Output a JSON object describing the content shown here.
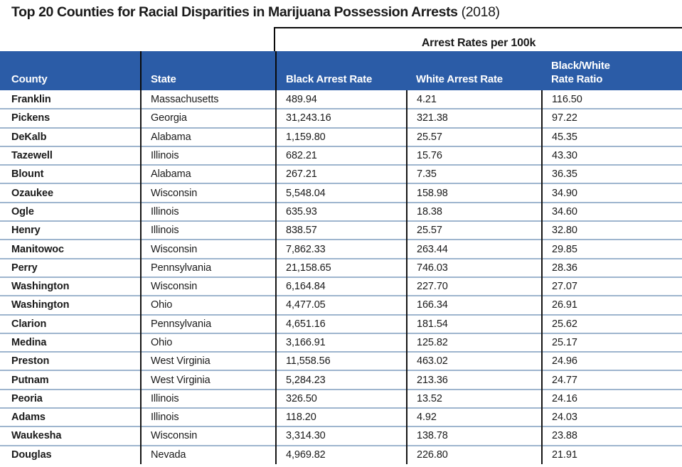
{
  "title": {
    "main": "Top 20 Counties for Racial Disparities in Marijuana Possession Arrests",
    "year": " (2018)"
  },
  "table": {
    "span_header": "Arrest Rates per 100k",
    "columns": [
      {
        "label": "County"
      },
      {
        "label": "State"
      },
      {
        "label": "Black Arrest Rate"
      },
      {
        "label": "White Arrest Rate"
      },
      {
        "label": "Black/White Rate Ratio"
      }
    ],
    "rows": [
      {
        "county": "Franklin",
        "state": "Massachusetts",
        "black_rate": "489.94",
        "white_rate": "4.21",
        "ratio": "116.50"
      },
      {
        "county": "Pickens",
        "state": "Georgia",
        "black_rate": "31,243.16",
        "white_rate": "321.38",
        "ratio": "97.22"
      },
      {
        "county": "DeKalb",
        "state": "Alabama",
        "black_rate": "1,159.80",
        "white_rate": "25.57",
        "ratio": "45.35"
      },
      {
        "county": "Tazewell",
        "state": "Illinois",
        "black_rate": "682.21",
        "white_rate": "15.76",
        "ratio": "43.30"
      },
      {
        "county": "Blount",
        "state": "Alabama",
        "black_rate": "267.21",
        "white_rate": "7.35",
        "ratio": "36.35"
      },
      {
        "county": "Ozaukee",
        "state": "Wisconsin",
        "black_rate": "5,548.04",
        "white_rate": "158.98",
        "ratio": "34.90"
      },
      {
        "county": "Ogle",
        "state": "Illinois",
        "black_rate": "635.93",
        "white_rate": "18.38",
        "ratio": "34.60"
      },
      {
        "county": "Henry",
        "state": "Illinois",
        "black_rate": "838.57",
        "white_rate": "25.57",
        "ratio": "32.80"
      },
      {
        "county": "Manitowoc",
        "state": "Wisconsin",
        "black_rate": "7,862.33",
        "white_rate": "263.44",
        "ratio": "29.85"
      },
      {
        "county": "Perry",
        "state": "Pennsylvania",
        "black_rate": "21,158.65",
        "white_rate": "746.03",
        "ratio": "28.36"
      },
      {
        "county": "Washington",
        "state": "Wisconsin",
        "black_rate": "6,164.84",
        "white_rate": "227.70",
        "ratio": "27.07"
      },
      {
        "county": "Washington",
        "state": "Ohio",
        "black_rate": "4,477.05",
        "white_rate": "166.34",
        "ratio": "26.91"
      },
      {
        "county": "Clarion",
        "state": "Pennsylvania",
        "black_rate": "4,651.16",
        "white_rate": "181.54",
        "ratio": "25.62"
      },
      {
        "county": "Medina",
        "state": "Ohio",
        "black_rate": "3,166.91",
        "white_rate": "125.82",
        "ratio": "25.17"
      },
      {
        "county": "Preston",
        "state": "West Virginia",
        "black_rate": "11,558.56",
        "white_rate": "463.02",
        "ratio": "24.96"
      },
      {
        "county": "Putnam",
        "state": "West Virginia",
        "black_rate": "5,284.23",
        "white_rate": "213.36",
        "ratio": "24.77"
      },
      {
        "county": "Peoria",
        "state": "Illinois",
        "black_rate": "326.50",
        "white_rate": "13.52",
        "ratio": "24.16"
      },
      {
        "county": "Adams",
        "state": "Illinois",
        "black_rate": "118.20",
        "white_rate": "4.92",
        "ratio": "24.03"
      },
      {
        "county": "Waukesha",
        "state": "Wisconsin",
        "black_rate": "3,314.30",
        "white_rate": "138.78",
        "ratio": "23.88"
      },
      {
        "county": "Douglas",
        "state": "Nevada",
        "black_rate": "4,969.82",
        "white_rate": "226.80",
        "ratio": "21.91"
      }
    ]
  },
  "colors": {
    "header_bg": "#2B5CA7",
    "header_text": "#FFFFFF",
    "row_divider": "#9EB5CE",
    "border_black": "#0A0A0A",
    "text": "#1A1A1A"
  },
  "chart_data": {
    "type": "table",
    "title": "Top 20 Counties for Racial Disparities in Marijuana Possession Arrests (2018)",
    "group_header": {
      "label": "Arrest Rates per 100k",
      "spans_columns": [
        "Black Arrest Rate",
        "White Arrest Rate",
        "Black/White Rate Ratio"
      ]
    },
    "columns": [
      "County",
      "State",
      "Black Arrest Rate",
      "White Arrest Rate",
      "Black/White Rate Ratio"
    ],
    "rows": [
      [
        "Franklin",
        "Massachusetts",
        489.94,
        4.21,
        116.5
      ],
      [
        "Pickens",
        "Georgia",
        31243.16,
        321.38,
        97.22
      ],
      [
        "DeKalb",
        "Alabama",
        1159.8,
        25.57,
        45.35
      ],
      [
        "Tazewell",
        "Illinois",
        682.21,
        15.76,
        43.3
      ],
      [
        "Blount",
        "Alabama",
        267.21,
        7.35,
        36.35
      ],
      [
        "Ozaukee",
        "Wisconsin",
        5548.04,
        158.98,
        34.9
      ],
      [
        "Ogle",
        "Illinois",
        635.93,
        18.38,
        34.6
      ],
      [
        "Henry",
        "Illinois",
        838.57,
        25.57,
        32.8
      ],
      [
        "Manitowoc",
        "Wisconsin",
        7862.33,
        263.44,
        29.85
      ],
      [
        "Perry",
        "Pennsylvania",
        21158.65,
        746.03,
        28.36
      ],
      [
        "Washington",
        "Wisconsin",
        6164.84,
        227.7,
        27.07
      ],
      [
        "Washington",
        "Ohio",
        4477.05,
        166.34,
        26.91
      ],
      [
        "Clarion",
        "Pennsylvania",
        4651.16,
        181.54,
        25.62
      ],
      [
        "Medina",
        "Ohio",
        3166.91,
        125.82,
        25.17
      ],
      [
        "Preston",
        "West Virginia",
        11558.56,
        463.02,
        24.96
      ],
      [
        "Putnam",
        "West Virginia",
        5284.23,
        213.36,
        24.77
      ],
      [
        "Peoria",
        "Illinois",
        326.5,
        13.52,
        24.16
      ],
      [
        "Adams",
        "Illinois",
        118.2,
        4.92,
        24.03
      ],
      [
        "Waukesha",
        "Wisconsin",
        3314.3,
        138.78,
        23.88
      ],
      [
        "Douglas",
        "Nevada",
        4969.82,
        226.8,
        21.91
      ]
    ]
  }
}
